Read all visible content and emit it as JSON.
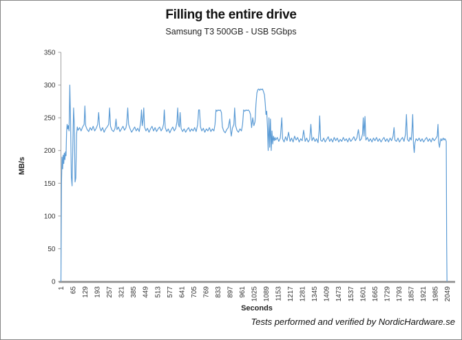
{
  "header": {
    "title": "Filling the entire drive",
    "subtitle": "Samsung T3 500GB - USB 5Gbps"
  },
  "footer": {
    "credit": "Tests performed and verified by NordicHardware.se"
  },
  "chart_data": {
    "type": "line",
    "title": "Filling the entire drive",
    "subtitle": "Samsung T3 500GB - USB 5Gbps",
    "xlabel": "Seconds",
    "ylabel": "MB/s",
    "legend": "none",
    "grid": false,
    "xlim": [
      1,
      2080
    ],
    "ylim": [
      0,
      350
    ],
    "x_ticks": [
      1,
      65,
      129,
      193,
      257,
      321,
      385,
      449,
      513,
      577,
      641,
      705,
      769,
      833,
      897,
      961,
      1025,
      1089,
      1153,
      1217,
      1281,
      1345,
      1409,
      1473,
      1537,
      1601,
      1665,
      1729,
      1793,
      1857,
      1921,
      1985,
      2049
    ],
    "y_ticks": [
      0,
      50,
      100,
      150,
      200,
      250,
      300,
      350
    ],
    "line_color": "#5B9BD5",
    "axis_color": "#9e9e9e",
    "points": [
      [
        1,
        0
      ],
      [
        4,
        150
      ],
      [
        7,
        190
      ],
      [
        10,
        172
      ],
      [
        13,
        193
      ],
      [
        16,
        180
      ],
      [
        19,
        196
      ],
      [
        22,
        186
      ],
      [
        25,
        198
      ],
      [
        28,
        192
      ],
      [
        31,
        228
      ],
      [
        34,
        240
      ],
      [
        37,
        233
      ],
      [
        40,
        238
      ],
      [
        44,
        230
      ],
      [
        48,
        300
      ],
      [
        52,
        245
      ],
      [
        56,
        160
      ],
      [
        60,
        146
      ],
      [
        64,
        210
      ],
      [
        68,
        265
      ],
      [
        72,
        240
      ],
      [
        76,
        152
      ],
      [
        80,
        158
      ],
      [
        84,
        225
      ],
      [
        88,
        236
      ],
      [
        92,
        231
      ],
      [
        100,
        235
      ],
      [
        108,
        230
      ],
      [
        116,
        236
      ],
      [
        124,
        240
      ],
      [
        128,
        268
      ],
      [
        132,
        238
      ],
      [
        140,
        232
      ],
      [
        148,
        229
      ],
      [
        156,
        235
      ],
      [
        164,
        231
      ],
      [
        172,
        237
      ],
      [
        180,
        230
      ],
      [
        188,
        234
      ],
      [
        196,
        240
      ],
      [
        201,
        258
      ],
      [
        206,
        236
      ],
      [
        214,
        230
      ],
      [
        222,
        235
      ],
      [
        230,
        228
      ],
      [
        238,
        233
      ],
      [
        246,
        236
      ],
      [
        254,
        240
      ],
      [
        259,
        265
      ],
      [
        264,
        237
      ],
      [
        272,
        231
      ],
      [
        280,
        229
      ],
      [
        288,
        234
      ],
      [
        293,
        248
      ],
      [
        298,
        232
      ],
      [
        306,
        236
      ],
      [
        314,
        229
      ],
      [
        322,
        233
      ],
      [
        330,
        237
      ],
      [
        338,
        231
      ],
      [
        346,
        235
      ],
      [
        350,
        242
      ],
      [
        355,
        265
      ],
      [
        360,
        240
      ],
      [
        368,
        233
      ],
      [
        376,
        228
      ],
      [
        384,
        232
      ],
      [
        392,
        236
      ],
      [
        400,
        230
      ],
      [
        408,
        234
      ],
      [
        416,
        229
      ],
      [
        424,
        244
      ],
      [
        428,
        262
      ],
      [
        432,
        238
      ],
      [
        436,
        246
      ],
      [
        440,
        265
      ],
      [
        444,
        236
      ],
      [
        452,
        230
      ],
      [
        460,
        234
      ],
      [
        468,
        228
      ],
      [
        476,
        233
      ],
      [
        484,
        237
      ],
      [
        492,
        230
      ],
      [
        500,
        235
      ],
      [
        508,
        229
      ],
      [
        516,
        233
      ],
      [
        524,
        236
      ],
      [
        532,
        230
      ],
      [
        540,
        234
      ],
      [
        545,
        240
      ],
      [
        549,
        262
      ],
      [
        554,
        235
      ],
      [
        562,
        229
      ],
      [
        570,
        233
      ],
      [
        578,
        227
      ],
      [
        586,
        232
      ],
      [
        594,
        236
      ],
      [
        602,
        230
      ],
      [
        610,
        234
      ],
      [
        616,
        244
      ],
      [
        620,
        265
      ],
      [
        624,
        240
      ],
      [
        629,
        236
      ],
      [
        633,
        258
      ],
      [
        638,
        234
      ],
      [
        646,
        229
      ],
      [
        654,
        233
      ],
      [
        662,
        228
      ],
      [
        670,
        232
      ],
      [
        678,
        235
      ],
      [
        686,
        229
      ],
      [
        694,
        233
      ],
      [
        702,
        230
      ],
      [
        710,
        235
      ],
      [
        718,
        229
      ],
      [
        726,
        240
      ],
      [
        731,
        262
      ],
      [
        736,
        262
      ],
      [
        741,
        236
      ],
      [
        748,
        230
      ],
      [
        756,
        234
      ],
      [
        764,
        228
      ],
      [
        772,
        233
      ],
      [
        780,
        230
      ],
      [
        788,
        235
      ],
      [
        796,
        229
      ],
      [
        804,
        233
      ],
      [
        812,
        230
      ],
      [
        818,
        240
      ],
      [
        823,
        262
      ],
      [
        828,
        260
      ],
      [
        834,
        262
      ],
      [
        840,
        261
      ],
      [
        846,
        262
      ],
      [
        852,
        258
      ],
      [
        857,
        236
      ],
      [
        864,
        230
      ],
      [
        872,
        227
      ],
      [
        880,
        232
      ],
      [
        888,
        235
      ],
      [
        896,
        248
      ],
      [
        900,
        232
      ],
      [
        904,
        222
      ],
      [
        910,
        234
      ],
      [
        918,
        240
      ],
      [
        922,
        265
      ],
      [
        927,
        238
      ],
      [
        934,
        231
      ],
      [
        942,
        228
      ],
      [
        950,
        233
      ],
      [
        958,
        230
      ],
      [
        964,
        240
      ],
      [
        970,
        262
      ],
      [
        976,
        260
      ],
      [
        982,
        262
      ],
      [
        988,
        261
      ],
      [
        994,
        262
      ],
      [
        1000,
        260
      ],
      [
        1006,
        255
      ],
      [
        1012,
        235
      ],
      [
        1018,
        250
      ],
      [
        1024,
        238
      ],
      [
        1030,
        244
      ],
      [
        1035,
        270
      ],
      [
        1040,
        288
      ],
      [
        1045,
        293
      ],
      [
        1050,
        294
      ],
      [
        1055,
        292
      ],
      [
        1060,
        294
      ],
      [
        1065,
        293
      ],
      [
        1070,
        294
      ],
      [
        1075,
        290
      ],
      [
        1080,
        285
      ],
      [
        1084,
        272
      ],
      [
        1088,
        255
      ],
      [
        1092,
        260
      ],
      [
        1096,
        235
      ],
      [
        1100,
        200
      ],
      [
        1104,
        250
      ],
      [
        1108,
        205
      ],
      [
        1112,
        248
      ],
      [
        1116,
        200
      ],
      [
        1120,
        230
      ],
      [
        1124,
        210
      ],
      [
        1128,
        222
      ],
      [
        1132,
        215
      ],
      [
        1136,
        220
      ],
      [
        1140,
        216
      ],
      [
        1148,
        220
      ],
      [
        1156,
        214
      ],
      [
        1164,
        219
      ],
      [
        1172,
        250
      ],
      [
        1176,
        218
      ],
      [
        1184,
        213
      ],
      [
        1192,
        221
      ],
      [
        1200,
        215
      ],
      [
        1208,
        228
      ],
      [
        1216,
        214
      ],
      [
        1224,
        219
      ],
      [
        1232,
        213
      ],
      [
        1240,
        222
      ],
      [
        1248,
        216
      ],
      [
        1256,
        220
      ],
      [
        1264,
        213
      ],
      [
        1272,
        218
      ],
      [
        1280,
        215
      ],
      [
        1288,
        231
      ],
      [
        1296,
        214
      ],
      [
        1304,
        219
      ],
      [
        1312,
        213
      ],
      [
        1320,
        217
      ],
      [
        1326,
        240
      ],
      [
        1332,
        215
      ],
      [
        1340,
        220
      ],
      [
        1348,
        214
      ],
      [
        1356,
        218
      ],
      [
        1364,
        212
      ],
      [
        1370,
        230
      ],
      [
        1373,
        253
      ],
      [
        1378,
        216
      ],
      [
        1386,
        214
      ],
      [
        1394,
        219
      ],
      [
        1402,
        213
      ],
      [
        1410,
        217
      ],
      [
        1418,
        221
      ],
      [
        1426,
        214
      ],
      [
        1434,
        218
      ],
      [
        1442,
        213
      ],
      [
        1450,
        220
      ],
      [
        1458,
        215
      ],
      [
        1466,
        219
      ],
      [
        1474,
        213
      ],
      [
        1482,
        217
      ],
      [
        1490,
        214
      ],
      [
        1498,
        220
      ],
      [
        1506,
        215
      ],
      [
        1514,
        218
      ],
      [
        1522,
        213
      ],
      [
        1530,
        219
      ],
      [
        1538,
        214
      ],
      [
        1546,
        217
      ],
      [
        1554,
        221
      ],
      [
        1562,
        215
      ],
      [
        1570,
        219
      ],
      [
        1578,
        232
      ],
      [
        1586,
        215
      ],
      [
        1594,
        218
      ],
      [
        1600,
        225
      ],
      [
        1604,
        250
      ],
      [
        1608,
        222
      ],
      [
        1613,
        252
      ],
      [
        1618,
        216
      ],
      [
        1626,
        220
      ],
      [
        1634,
        214
      ],
      [
        1642,
        218
      ],
      [
        1650,
        213
      ],
      [
        1658,
        219
      ],
      [
        1666,
        215
      ],
      [
        1674,
        220
      ],
      [
        1682,
        214
      ],
      [
        1690,
        218
      ],
      [
        1698,
        213
      ],
      [
        1706,
        217
      ],
      [
        1714,
        220
      ],
      [
        1722,
        214
      ],
      [
        1730,
        218
      ],
      [
        1738,
        213
      ],
      [
        1746,
        219
      ],
      [
        1754,
        215
      ],
      [
        1762,
        222
      ],
      [
        1767,
        235
      ],
      [
        1772,
        216
      ],
      [
        1780,
        214
      ],
      [
        1788,
        219
      ],
      [
        1796,
        213
      ],
      [
        1804,
        217
      ],
      [
        1812,
        220
      ],
      [
        1820,
        214
      ],
      [
        1828,
        225
      ],
      [
        1833,
        255
      ],
      [
        1838,
        217
      ],
      [
        1846,
        214
      ],
      [
        1852,
        220
      ],
      [
        1858,
        216
      ],
      [
        1862,
        230
      ],
      [
        1866,
        255
      ],
      [
        1870,
        210
      ],
      [
        1874,
        197
      ],
      [
        1878,
        212
      ],
      [
        1884,
        218
      ],
      [
        1892,
        215
      ],
      [
        1900,
        219
      ],
      [
        1908,
        214
      ],
      [
        1916,
        218
      ],
      [
        1924,
        213
      ],
      [
        1932,
        217
      ],
      [
        1940,
        220
      ],
      [
        1948,
        214
      ],
      [
        1956,
        218
      ],
      [
        1964,
        213
      ],
      [
        1972,
        219
      ],
      [
        1980,
        215
      ],
      [
        1988,
        218
      ],
      [
        1996,
        222
      ],
      [
        2000,
        240
      ],
      [
        2004,
        212
      ],
      [
        2008,
        205
      ],
      [
        2012,
        214
      ],
      [
        2016,
        218
      ],
      [
        2020,
        215
      ],
      [
        2024,
        217
      ],
      [
        2028,
        219
      ],
      [
        2032,
        216
      ],
      [
        2036,
        218
      ],
      [
        2040,
        217
      ],
      [
        2044,
        214
      ],
      [
        2046,
        60
      ],
      [
        2048,
        0
      ]
    ]
  }
}
